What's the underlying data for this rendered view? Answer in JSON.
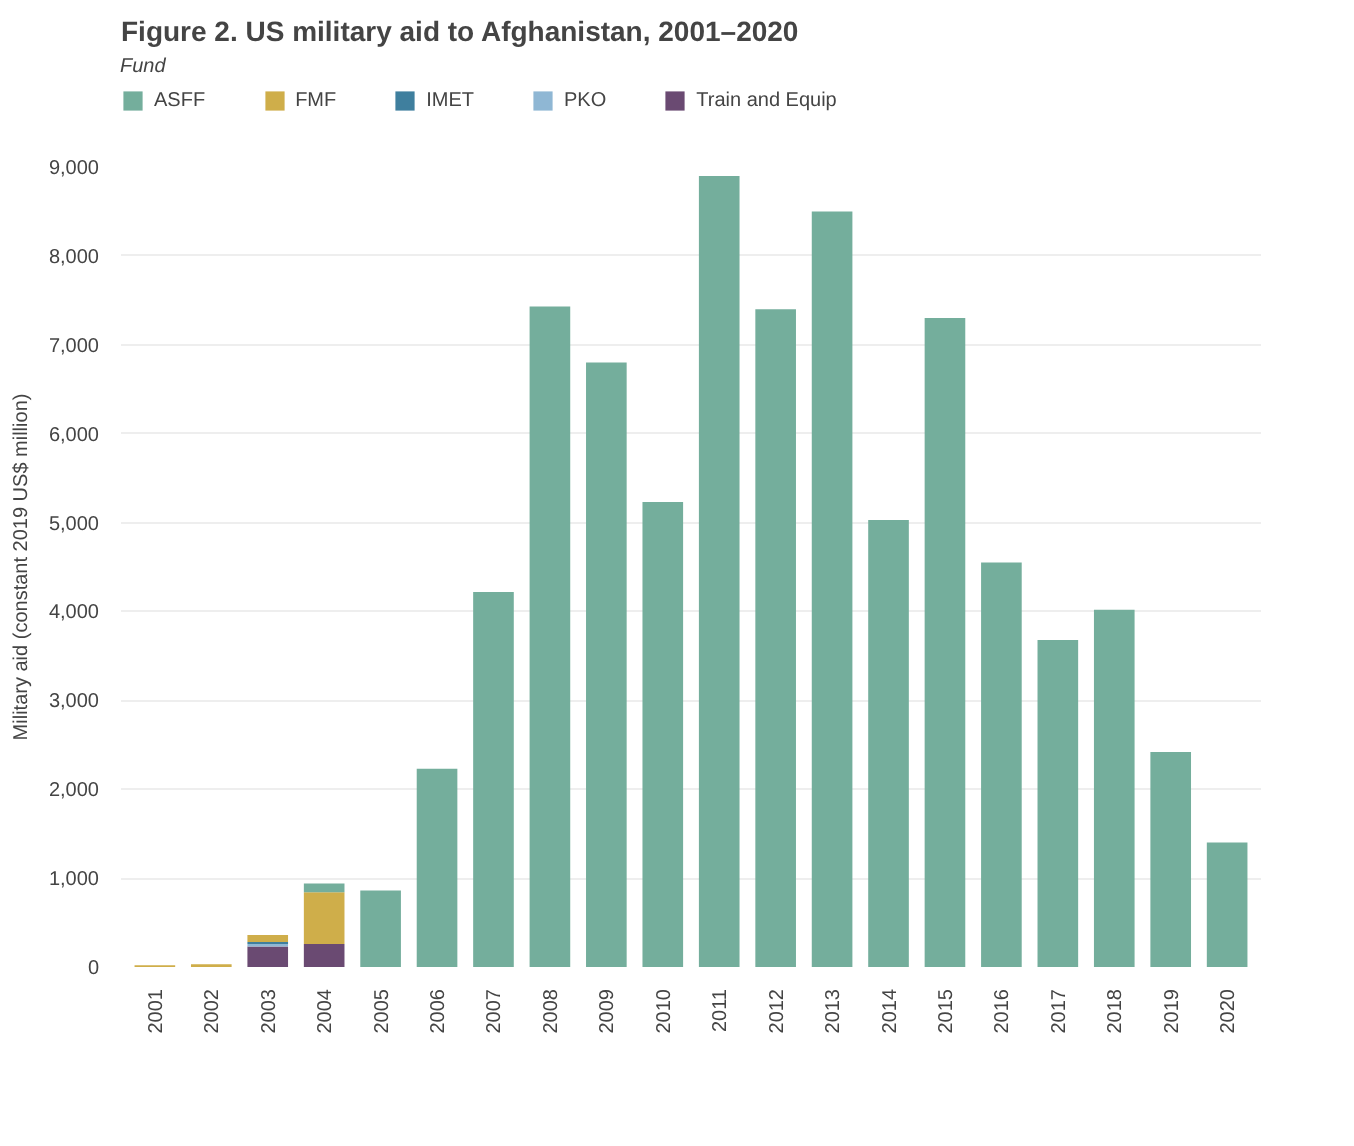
{
  "chart_data": {
    "type": "bar",
    "stacked": true,
    "title": "Figure 2. US military aid to Afghanistan, 2001–2020",
    "ylabel": "Military aid (constant 2019 US$ million)",
    "legend_title": "Fund",
    "legend": "top",
    "grid": "y",
    "categories": [
      "2001",
      "2002",
      "2003",
      "2004",
      "2005",
      "2006",
      "2007",
      "2008",
      "2009",
      "2010",
      "2011",
      "2012",
      "2013",
      "2014",
      "2015",
      "2016",
      "2017",
      "2018",
      "2019",
      "2020"
    ],
    "ylim": [
      0,
      9000
    ],
    "yticks": [
      0,
      {
        "value": 1000,
        "label": "1,000"
      },
      {
        "value": 2000,
        "label": "2,000"
      },
      {
        "value": 3000,
        "label": "3,000"
      },
      {
        "value": 4000,
        "label": "4,000"
      },
      {
        "value": 5000,
        "label": "5,000"
      },
      {
        "value": 6000,
        "label": "6,000"
      },
      {
        "value": 7000,
        "label": "7,000"
      },
      {
        "value": 8000,
        "label": "8,000"
      },
      {
        "value": 9000,
        "label": "9,000"
      }
    ],
    "series": [
      {
        "name": "Train and Equip",
        "color": "#6a4a72",
        "values": [
          null,
          null,
          230,
          260,
          null,
          null,
          null,
          null,
          null,
          null,
          null,
          null,
          null,
          null,
          null,
          null,
          null,
          null,
          null,
          null
        ]
      },
      {
        "name": "PKO",
        "color": "#8fb7d4",
        "values": [
          null,
          null,
          30,
          null,
          null,
          null,
          null,
          null,
          null,
          null,
          null,
          null,
          null,
          null,
          null,
          null,
          null,
          null,
          null,
          null
        ]
      },
      {
        "name": "IMET",
        "color": "#3f7f9e",
        "values": [
          null,
          null,
          20,
          null,
          null,
          null,
          null,
          null,
          null,
          null,
          null,
          null,
          null,
          null,
          null,
          null,
          null,
          null,
          null,
          null
        ]
      },
      {
        "name": "FMF",
        "color": "#cfae4a",
        "values": [
          20,
          30,
          80,
          580,
          null,
          null,
          null,
          null,
          null,
          null,
          null,
          null,
          null,
          null,
          null,
          null,
          null,
          null,
          null,
          null
        ]
      },
      {
        "name": "ASFF",
        "color": "#74ae9c",
        "values": [
          null,
          null,
          null,
          100,
          860,
          2230,
          4220,
          7430,
          6800,
          5230,
          8900,
          7400,
          8500,
          5030,
          7300,
          4550,
          3680,
          4020,
          2420,
          1400
        ]
      }
    ]
  }
}
